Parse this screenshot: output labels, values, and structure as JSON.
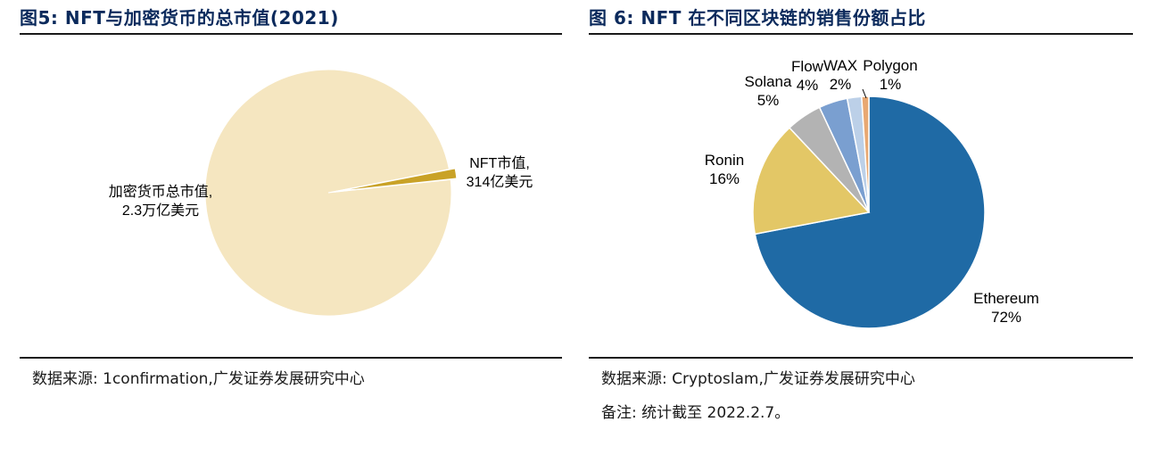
{
  "fig5": {
    "title": "图5:  NFT与加密货币的总市值(2021)",
    "source_note": "数据来源:  1confirmation,广发证券发展研究中心",
    "chart_data": {
      "type": "pie",
      "slices": [
        {
          "label": [
            "加密货币总市值,",
            "2.3万亿美元"
          ],
          "value": 23000,
          "color": "#f5e6c0"
        },
        {
          "label": [
            "NFT市值,",
            "314亿美元"
          ],
          "value": 314,
          "color": "#c9a227",
          "exploded": true
        }
      ]
    }
  },
  "fig6": {
    "title": "图 6:  NFT 在不同区块链的销售份额占比",
    "source_note": "数据来源:  Cryptoslam,广发证券发展研究中心",
    "remark": "备注:  统计截至 2022.2.7。",
    "chart_data": {
      "type": "pie",
      "slices": [
        {
          "label": [
            "Ethereum",
            "72%"
          ],
          "value": 72,
          "color": "#1f6aa5"
        },
        {
          "label": [
            "Ronin",
            "16%"
          ],
          "value": 16,
          "color": "#e3c766"
        },
        {
          "label": [
            "Solana",
            "5%"
          ],
          "value": 5,
          "color": "#b3b3b3"
        },
        {
          "label": [
            "Flow",
            "4%"
          ],
          "value": 4,
          "color": "#7a9fd0"
        },
        {
          "label": [
            "WAX",
            "2%"
          ],
          "value": 2,
          "color": "#bcd0e8"
        },
        {
          "label": [
            "Polygon",
            "1%"
          ],
          "value": 1,
          "color": "#e8a872"
        }
      ]
    }
  }
}
